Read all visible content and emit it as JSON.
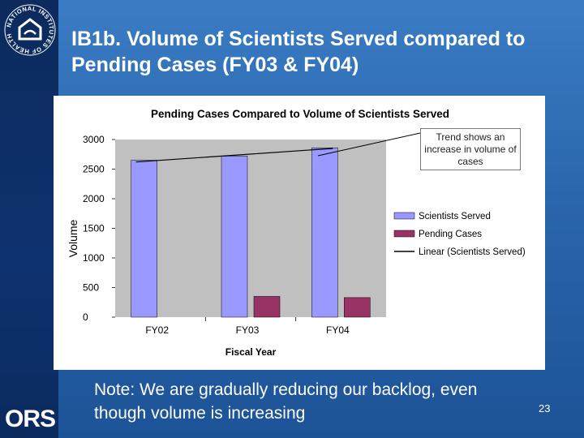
{
  "slide": {
    "title": "IB1b. Volume of Scientists Served compared to Pending Cases (FY03 & FY04)",
    "note": "Note: We are gradually reducing our backlog, even though volume is increasing",
    "page_number": "23",
    "logo_left": "ORS",
    "seal_text": "NATIONAL INSTITUTES OF HEALTH"
  },
  "colors": {
    "background": "#2a66ad",
    "left_bar": "#0e3270",
    "plot_area": "#c0c0c0",
    "scientists_bar": "#9999ff",
    "pending_bar": "#993366",
    "trend_line": "#000000"
  },
  "chart_data": {
    "type": "bar",
    "title": "Pending Cases Compared to Volume of Scientists Served",
    "xlabel": "Fiscal Year",
    "ylabel": "Volume",
    "categories": [
      "FY02",
      "FY03",
      "FY04"
    ],
    "ylim": [
      0,
      3000
    ],
    "yticks": [
      0,
      500,
      1000,
      1500,
      2000,
      2500,
      3000
    ],
    "grid": false,
    "legend_position": "right",
    "series": [
      {
        "name": "Scientists Served",
        "values": [
          2650,
          2720,
          2860
        ],
        "color": "#9999ff"
      },
      {
        "name": "Pending Cases",
        "values": [
          null,
          350,
          330
        ],
        "color": "#993366"
      }
    ],
    "trendline": {
      "name": "Linear (Scientists Served)",
      "values": [
        2630,
        2735,
        2840
      ]
    },
    "annotation": "Trend shows an increase in volume of cases"
  }
}
